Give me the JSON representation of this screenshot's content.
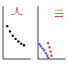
{
  "chart_data": [
    {
      "type": "line",
      "xlim": [
        0,
        10
      ],
      "ylim": [
        0,
        10
      ],
      "tick_labels": false,
      "series": [
        {
          "type": "line",
          "color": "#e8609a",
          "x": [
            3,
            4,
            4.6,
            5,
            5.4,
            6,
            7
          ],
          "values": [
            8.4,
            8.4,
            8.6,
            9.8,
            8.6,
            8.4,
            8.4
          ]
        },
        {
          "type": "scatter",
          "color": "#000000",
          "x": [
            1.5,
            2.5,
            3.5,
            4.5,
            5.5,
            6.5,
            7.5
          ],
          "values": [
            6.2,
            5.2,
            4.4,
            3.8,
            3.3,
            2.9,
            2.6
          ]
        }
      ]
    },
    {
      "type": "scatter",
      "xlim": [
        0,
        10
      ],
      "ylim": [
        0,
        10
      ],
      "tick_labels": false,
      "series": [
        {
          "type": "line",
          "color": "#f59f00",
          "x": [
            6,
            9
          ],
          "values": [
            9.2,
            9.2
          ]
        },
        {
          "type": "line",
          "color": "#37b24d",
          "x": [
            6,
            9
          ],
          "values": [
            8.6,
            8.6
          ]
        },
        {
          "type": "line",
          "color": "#e03131",
          "x": [
            6,
            9
          ],
          "values": [
            8.0,
            8.0
          ]
        },
        {
          "type": "scatter",
          "color": "#3b5bdb",
          "x": [
            0.5,
            1,
            1.6,
            2.2,
            2.8,
            3.3,
            3.7
          ],
          "values": [
            2.8,
            2.4,
            2.0,
            1.6,
            1.1,
            0.6,
            0.2
          ]
        },
        {
          "type": "scatter",
          "color": "#e03131",
          "x": [
            3.6,
            4.1,
            4.5,
            4.8
          ],
          "values": [
            3.0,
            2.2,
            1.4,
            0.6
          ]
        }
      ]
    }
  ]
}
